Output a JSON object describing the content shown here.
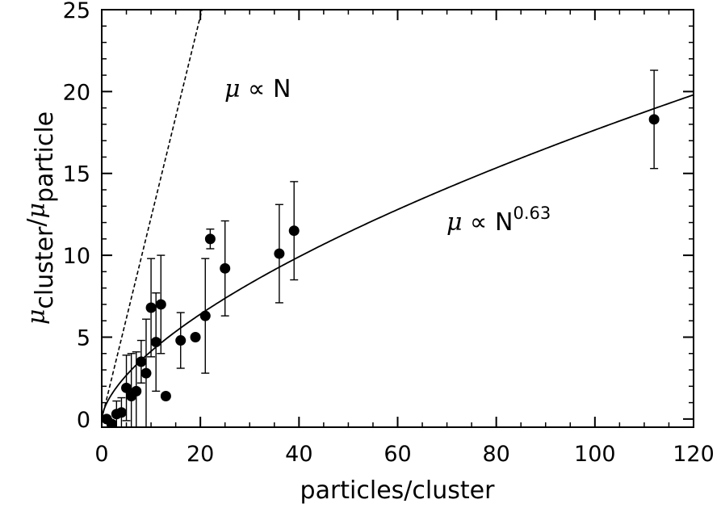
{
  "chart_data": {
    "type": "scatter",
    "title": "",
    "xlabel": "particles/cluster",
    "ylabel": {
      "mu": "μ",
      "num_sub": "cluster",
      "slash": "/",
      "den_sub": "particle"
    },
    "xlim": [
      0,
      120
    ],
    "ylim": [
      -0.5,
      25
    ],
    "xticks": [
      0,
      20,
      40,
      60,
      80,
      100,
      120
    ],
    "yticks": [
      0,
      5,
      10,
      15,
      20,
      25
    ],
    "grid": false,
    "points": [
      {
        "x": 1,
        "y": 0.0,
        "err": 0.0
      },
      {
        "x": 2,
        "y": -0.3,
        "err": 0.2
      },
      {
        "x": 3,
        "y": 0.3,
        "err": 0.8
      },
      {
        "x": 4,
        "y": 0.4,
        "err": 0.9
      },
      {
        "x": 5,
        "y": 1.9,
        "err": 2.0
      },
      {
        "x": 6,
        "y": 1.4,
        "err": 2.6
      },
      {
        "x": 7,
        "y": 1.7,
        "err": 2.4
      },
      {
        "x": 8,
        "y": 3.5,
        "err": 1.3
      },
      {
        "x": 9,
        "y": 2.8,
        "err": 3.3
      },
      {
        "x": 10,
        "y": 6.8,
        "err": 3.0
      },
      {
        "x": 11,
        "y": 4.7,
        "err": 3.0
      },
      {
        "x": 12,
        "y": 7.0,
        "err": 3.0
      },
      {
        "x": 13,
        "y": 1.4,
        "err": 0.0
      },
      {
        "x": 16,
        "y": 4.8,
        "err": 1.7
      },
      {
        "x": 19,
        "y": 5.0,
        "err": 0.0
      },
      {
        "x": 21,
        "y": 6.3,
        "err": 3.5
      },
      {
        "x": 22,
        "y": 11.0,
        "err": 0.6
      },
      {
        "x": 25,
        "y": 9.2,
        "err": 2.9
      },
      {
        "x": 36,
        "y": 10.1,
        "err": 3.0
      },
      {
        "x": 39,
        "y": 11.5,
        "err": 3.0
      },
      {
        "x": 112,
        "y": 18.3,
        "err": 3.0
      }
    ],
    "series": [
      {
        "type": "line",
        "style": "dashed",
        "slope": 1.23,
        "label_prefix": "μ",
        "label_main": " ∝ N",
        "label_exp": ""
      },
      {
        "type": "line",
        "style": "solid",
        "coef": 0.97,
        "exponent": 0.63,
        "label_prefix": "μ",
        "label_main": " ∝ N",
        "label_exp": "0.63"
      }
    ]
  }
}
